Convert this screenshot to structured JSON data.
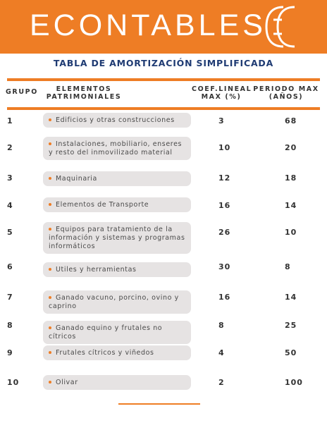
{
  "header": {
    "brand": "ECONTABLES"
  },
  "title": "TABLA DE AMORTIZACIÓN SIMPLIFICADA",
  "columns": {
    "grupo": "GRUPO",
    "elementos": "ELEMENTOS PATRIMONIALES",
    "coef": "COEF.LINEAL MAX (%)",
    "periodo": "PERIODO MAX (AÑOS)"
  },
  "rows": [
    {
      "grupo": "1",
      "elemento": "Edificios y otras construcciones",
      "coef": "3",
      "periodo": "68"
    },
    {
      "grupo": "2",
      "elemento": "Instalaciones, mobiliario, enseres y resto del inmovilizado material",
      "coef": "10",
      "periodo": "20"
    },
    {
      "grupo": "3",
      "elemento": "Maquinaria",
      "coef": "12",
      "periodo": "18"
    },
    {
      "grupo": "4",
      "elemento": "Elementos de Transporte",
      "coef": "16",
      "periodo": "14"
    },
    {
      "grupo": "5",
      "elemento": "Equipos para tratamiento de la información y sistemas y programas informáticos",
      "coef": "26",
      "periodo": "10"
    },
    {
      "grupo": "6",
      "elemento": "Utiles y herramientas",
      "coef": "30",
      "periodo": "8"
    },
    {
      "grupo": "7",
      "elemento": "Ganado vacuno, porcino, ovino y caprino",
      "coef": "16",
      "periodo": "14"
    },
    {
      "grupo": "8",
      "elemento": "Ganado equino y frutales no cítricos",
      "coef": "8",
      "periodo": "25"
    },
    {
      "grupo": "9",
      "elemento": "Frutales cítricos y viñedos",
      "coef": "4",
      "periodo": "50"
    },
    {
      "grupo": "10",
      "elemento": "Olivar",
      "coef": "2",
      "periodo": "100"
    }
  ],
  "colors": {
    "accent": "#ee7d25",
    "title": "#1f3b73",
    "pill": "#e6e3e3"
  }
}
